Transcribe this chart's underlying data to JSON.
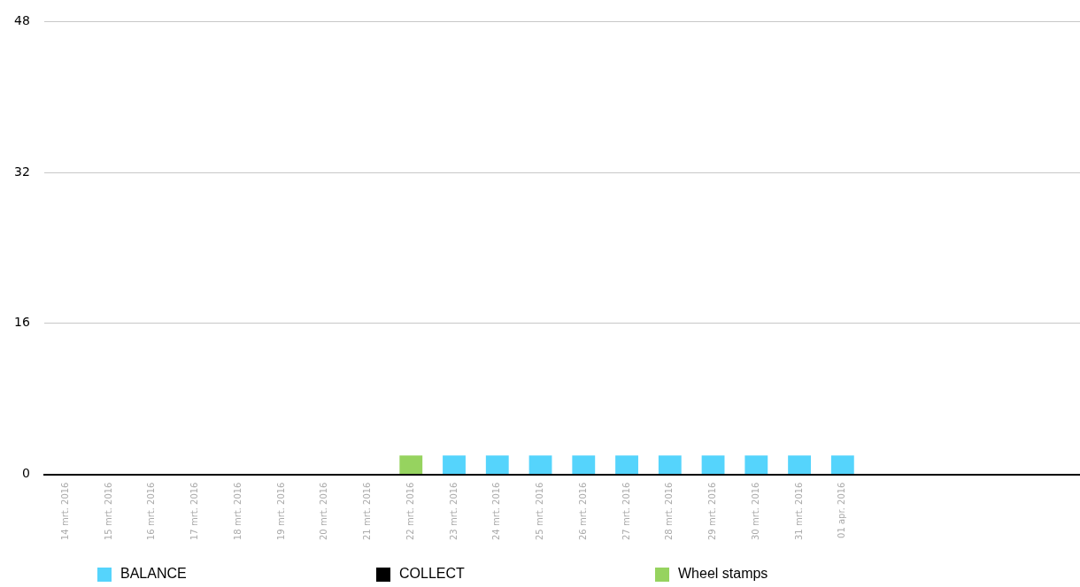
{
  "chart_data": {
    "type": "bar",
    "stacked": true,
    "categories": [
      "14 mrt. 2016",
      "15 mrt. 2016",
      "16 mrt. 2016",
      "17 mrt. 2016",
      "18 mrt. 2016",
      "19 mrt. 2016",
      "20 mrt. 2016",
      "21 mrt. 2016",
      "22 mrt. 2016",
      "23 mrt. 2016",
      "24 mrt. 2016",
      "25 mrt. 2016",
      "26 mrt. 2016",
      "27 mrt. 2016",
      "28 mrt. 2016",
      "29 mrt. 2016",
      "30 mrt. 2016",
      "31 mrt. 2016",
      "01 apr. 2016",
      null,
      null,
      null,
      null,
      null
    ],
    "series": [
      {
        "name": "BALANCE",
        "color": "#55d4fc",
        "values": [
          0,
          0,
          0,
          0,
          0,
          0,
          0,
          0,
          0,
          2,
          2,
          2,
          2,
          2,
          2,
          2,
          2,
          2,
          2,
          null,
          null,
          null,
          null,
          null
        ]
      },
      {
        "name": "COLLECT",
        "color": "#000000",
        "values": [
          0,
          0,
          0,
          0,
          0,
          0,
          0,
          0,
          0,
          0,
          0,
          0,
          0,
          0,
          0,
          0,
          0,
          0,
          0,
          null,
          null,
          null,
          null,
          null
        ]
      },
      {
        "name": "Wheel stamps",
        "color": "#96d35f",
        "values": [
          0,
          0,
          0,
          0,
          0,
          0,
          0,
          0,
          2,
          0,
          0,
          0,
          0,
          0,
          0,
          0,
          0,
          0,
          0,
          null,
          null,
          null,
          null,
          null
        ]
      }
    ],
    "ylim": [
      0,
      48
    ],
    "yticks": [
      0,
      16,
      32,
      48
    ],
    "grid": "y",
    "legend": "bottom"
  }
}
